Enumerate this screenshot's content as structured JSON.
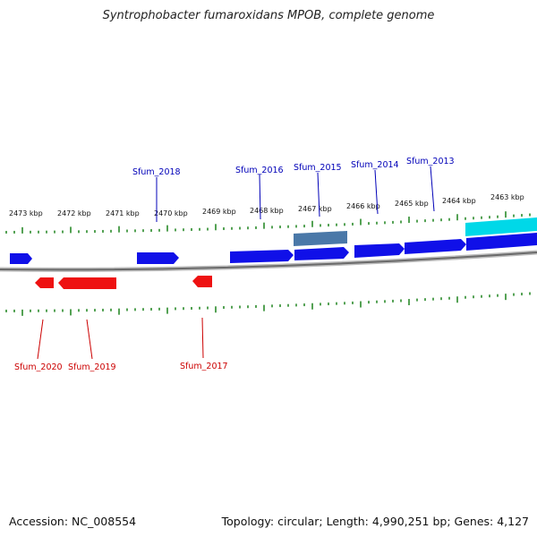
{
  "title": "Syntrophobacter fumaroxidans MPOB, complete genome",
  "footer": {
    "accession": "Accession: NC_008554",
    "summary": "Topology: circular; Length: 4,990,251 bp; Genes: 4,127"
  },
  "colors": {
    "forward_gene": "#1010e8",
    "reverse_gene": "#ee1111",
    "rna_or_other": "#4a78a8",
    "highlight_gene": "#00d8e8",
    "backbone": "#7a7a7a",
    "ticks": "#2a8a2a",
    "forward_label": "#0000b8",
    "reverse_label": "#cc0000"
  },
  "scale_labels": [
    "2473 kbp",
    "2472 kbp",
    "2471 kbp",
    "2470 kbp",
    "2469 kbp",
    "2468 kbp",
    "2467 kbp",
    "2466 kbp",
    "2465 kbp",
    "2464 kbp",
    "2463 kbp"
  ],
  "forward_gene_labels": [
    "Sfum_2018",
    "Sfum_2016",
    "Sfum_2015",
    "Sfum_2014",
    "Sfum_2013"
  ],
  "reverse_gene_labels": [
    "Sfum_2020",
    "Sfum_2019",
    "Sfum_2017"
  ]
}
